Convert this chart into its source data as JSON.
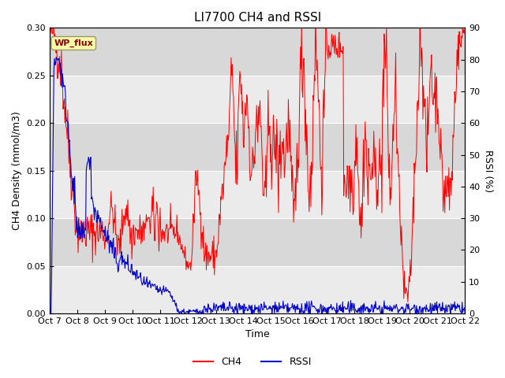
{
  "title": "LI7700 CH4 and RSSI",
  "ylabel_left": "CH4 Density (mmol/m3)",
  "ylabel_right": "RSSI (%)",
  "xlabel": "Time",
  "ylim_left": [
    0,
    0.3
  ],
  "ylim_right": [
    0,
    90
  ],
  "yticks_left": [
    0.0,
    0.05,
    0.1,
    0.15,
    0.2,
    0.25,
    0.3
  ],
  "yticks_right": [
    0,
    10,
    20,
    30,
    40,
    50,
    60,
    70,
    80,
    90
  ],
  "xtick_labels": [
    "Oct 7",
    "Oct 8",
    "Oct 9",
    "Oct 10",
    "Oct 11",
    "Oct 12",
    "Oct 13",
    "Oct 14",
    "Oct 15",
    "Oct 16",
    "Oct 17",
    "Oct 18",
    "Oct 19",
    "Oct 20",
    "Oct 21",
    "Oct 22"
  ],
  "ch4_color": "#FF0000",
  "rssi_color": "#0000CC",
  "background_color": "#E0E0E0",
  "band_light": "#EBEBEB",
  "band_dark": "#D8D8D8",
  "title_fontsize": 11,
  "label_fontsize": 9,
  "tick_fontsize": 8,
  "legend_fontsize": 9,
  "annotation_text": "WP_flux",
  "fig_facecolor": "white",
  "n_days": 15,
  "n_points": 720
}
